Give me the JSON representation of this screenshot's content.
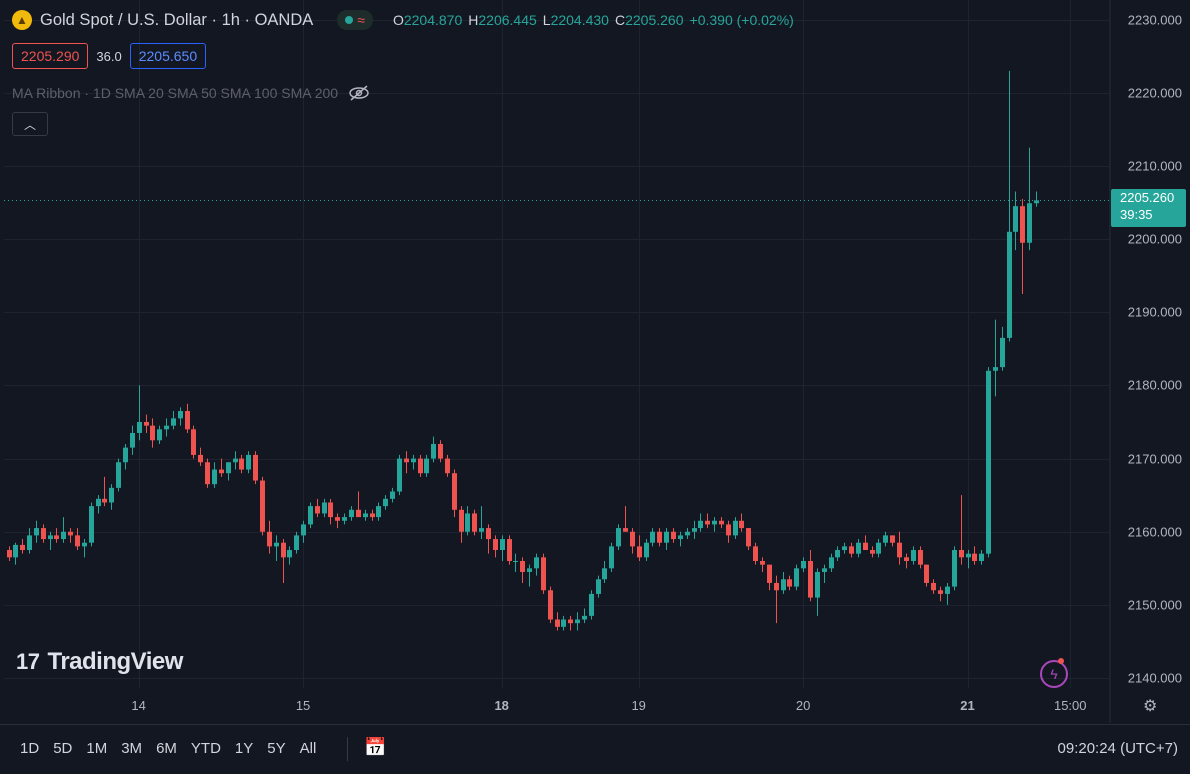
{
  "header": {
    "title": "Gold Spot / U.S. Dollar · 1h · OANDA",
    "ohlc": {
      "o_label": "O",
      "o": "2204.870",
      "h_label": "H",
      "h": "2206.445",
      "l_label": "L",
      "l": "2204.430",
      "c_label": "C",
      "c": "2205.260",
      "change": "+0.390 (+0.02%)"
    }
  },
  "quote": {
    "bid": "2205.290",
    "spread": "36.0",
    "ask": "2205.650"
  },
  "indicator": {
    "label": "MA Ribbon · 1D SMA 20 SMA 50 SMA 100 SMA 200"
  },
  "last_price": {
    "value": "2205.260",
    "countdown": "39:35"
  },
  "watermark": "TradingView",
  "timeframes": [
    "1D",
    "5D",
    "1M",
    "3M",
    "6M",
    "YTD",
    "1Y",
    "5Y",
    "All"
  ],
  "clock": "09:20:24 (UTC+7)",
  "colors": {
    "up": "#26a69a",
    "down": "#ef5350",
    "background": "#131722"
  },
  "icons": {
    "logo": "gold-coin-icon",
    "visibility": "eye-off-icon",
    "collapse": "chevron-up-icon",
    "calendar": "calendar-range-icon",
    "settings": "gear-icon",
    "bolt": "lightning-icon"
  },
  "chart_data": {
    "type": "candlestick",
    "title": "Gold Spot / U.S. Dollar · 1h · OANDA",
    "ylim": [
      2137,
      2232
    ],
    "yticks": [
      2140,
      2150,
      2160,
      2170,
      2180,
      2190,
      2200,
      2210,
      2220,
      2230
    ],
    "ytick_labels": [
      "2140.000",
      "2150.000",
      "2160.000",
      "2170.000",
      "2180.000",
      "2190.000",
      "2200.000",
      "2210.000",
      "2220.000",
      "2230.000"
    ],
    "xticks": [
      {
        "index": 19,
        "label": "14"
      },
      {
        "index": 43,
        "label": "15"
      },
      {
        "index": 72,
        "label": "18"
      },
      {
        "index": 92,
        "label": "19"
      },
      {
        "index": 116,
        "label": "20"
      },
      {
        "index": 140,
        "label": "21"
      },
      {
        "index": 155,
        "label": "15:00"
      }
    ],
    "grid": true,
    "series": [
      [
        2157.5,
        2158.0,
        2156.0,
        2156.5
      ],
      [
        2156.5,
        2158.5,
        2155.5,
        2158.2
      ],
      [
        2158.2,
        2159.0,
        2157.0,
        2157.5
      ],
      [
        2157.5,
        2160.5,
        2157.0,
        2159.5
      ],
      [
        2159.5,
        2161.5,
        2158.5,
        2160.5
      ],
      [
        2160.5,
        2161.0,
        2158.5,
        2159.0
      ],
      [
        2159.0,
        2160.0,
        2157.5,
        2159.5
      ],
      [
        2159.5,
        2160.5,
        2158.5,
        2159.0
      ],
      [
        2159.0,
        2162.0,
        2158.5,
        2160.0
      ],
      [
        2160.0,
        2160.5,
        2158.5,
        2159.5
      ],
      [
        2159.5,
        2160.5,
        2157.5,
        2158.0
      ],
      [
        2158.0,
        2159.0,
        2156.5,
        2158.5
      ],
      [
        2158.5,
        2164.0,
        2158.0,
        2163.5
      ],
      [
        2163.5,
        2165.0,
        2162.5,
        2164.5
      ],
      [
        2164.5,
        2167.5,
        2163.5,
        2164.0
      ],
      [
        2164.0,
        2166.5,
        2163.0,
        2166.0
      ],
      [
        2166.0,
        2170.0,
        2165.5,
        2169.5
      ],
      [
        2169.5,
        2172.0,
        2168.5,
        2171.5
      ],
      [
        2171.5,
        2174.5,
        2170.5,
        2173.5
      ],
      [
        2173.5,
        2180.0,
        2172.5,
        2175.0
      ],
      [
        2175.0,
        2176.0,
        2173.5,
        2174.5
      ],
      [
        2174.5,
        2175.5,
        2171.5,
        2172.5
      ],
      [
        2172.5,
        2174.5,
        2172.0,
        2174.0
      ],
      [
        2174.0,
        2175.5,
        2173.0,
        2174.5
      ],
      [
        2174.5,
        2176.5,
        2174.0,
        2175.5
      ],
      [
        2175.5,
        2177.0,
        2174.5,
        2176.5
      ],
      [
        2176.5,
        2177.5,
        2173.5,
        2174.0
      ],
      [
        2174.0,
        2174.5,
        2170.0,
        2170.5
      ],
      [
        2170.5,
        2171.5,
        2169.0,
        2169.5
      ],
      [
        2169.5,
        2170.0,
        2166.0,
        2166.5
      ],
      [
        2166.5,
        2169.5,
        2166.0,
        2168.5
      ],
      [
        2168.5,
        2170.0,
        2167.5,
        2168.0
      ],
      [
        2168.0,
        2169.5,
        2167.0,
        2169.5
      ],
      [
        2169.5,
        2171.0,
        2168.5,
        2170.0
      ],
      [
        2170.0,
        2170.5,
        2168.0,
        2168.5
      ],
      [
        2168.5,
        2171.0,
        2168.0,
        2170.5
      ],
      [
        2170.5,
        2171.0,
        2166.5,
        2167.0
      ],
      [
        2167.0,
        2167.5,
        2159.5,
        2160.0
      ],
      [
        2160.0,
        2161.5,
        2157.0,
        2158.0
      ],
      [
        2158.0,
        2159.5,
        2156.0,
        2158.5
      ],
      [
        2158.5,
        2159.0,
        2153.0,
        2156.5
      ],
      [
        2156.5,
        2158.0,
        2155.5,
        2157.5
      ],
      [
        2157.5,
        2160.0,
        2157.0,
        2159.5
      ],
      [
        2159.5,
        2161.5,
        2158.5,
        2161.0
      ],
      [
        2161.0,
        2164.0,
        2160.5,
        2163.5
      ],
      [
        2163.5,
        2164.5,
        2162.0,
        2162.5
      ],
      [
        2162.5,
        2164.5,
        2162.0,
        2164.0
      ],
      [
        2164.0,
        2164.5,
        2161.0,
        2162.0
      ],
      [
        2162.0,
        2162.5,
        2160.5,
        2161.5
      ],
      [
        2161.5,
        2162.5,
        2161.0,
        2162.0
      ],
      [
        2162.0,
        2163.5,
        2161.5,
        2163.0
      ],
      [
        2163.0,
        2165.5,
        2162.5,
        2162.0
      ],
      [
        2162.0,
        2163.0,
        2161.5,
        2162.5
      ],
      [
        2162.5,
        2163.0,
        2161.5,
        2162.0
      ],
      [
        2162.0,
        2164.0,
        2161.5,
        2163.5
      ],
      [
        2163.5,
        2165.0,
        2163.0,
        2164.5
      ],
      [
        2164.5,
        2166.0,
        2164.0,
        2165.5
      ],
      [
        2165.5,
        2170.5,
        2165.0,
        2170.0
      ],
      [
        2170.0,
        2171.0,
        2168.0,
        2169.5
      ],
      [
        2169.5,
        2170.5,
        2168.5,
        2170.0
      ],
      [
        2170.0,
        2170.5,
        2167.5,
        2168.0
      ],
      [
        2168.0,
        2170.5,
        2167.5,
        2170.0
      ],
      [
        2170.0,
        2173.0,
        2169.5,
        2172.0
      ],
      [
        2172.0,
        2172.5,
        2169.5,
        2170.0
      ],
      [
        2170.0,
        2170.5,
        2167.5,
        2168.0
      ],
      [
        2168.0,
        2168.5,
        2162.0,
        2163.0
      ],
      [
        2163.0,
        2163.5,
        2158.5,
        2160.0
      ],
      [
        2160.0,
        2163.5,
        2159.5,
        2162.5
      ],
      [
        2162.5,
        2163.0,
        2159.5,
        2160.0
      ],
      [
        2160.0,
        2163.5,
        2159.0,
        2160.5
      ],
      [
        2160.5,
        2161.0,
        2157.0,
        2159.0
      ],
      [
        2159.0,
        2159.5,
        2156.5,
        2157.5
      ],
      [
        2157.5,
        2159.5,
        2156.0,
        2159.0
      ],
      [
        2159.0,
        2159.5,
        2155.5,
        2156.0
      ],
      [
        2156.0,
        2157.0,
        2154.5,
        2156.0
      ],
      [
        2156.0,
        2156.5,
        2153.0,
        2154.5
      ],
      [
        2154.5,
        2155.5,
        2152.5,
        2155.0
      ],
      [
        2155.0,
        2157.0,
        2154.0,
        2156.5
      ],
      [
        2156.5,
        2157.0,
        2151.5,
        2152.0
      ],
      [
        2152.0,
        2152.5,
        2147.5,
        2148.0
      ],
      [
        2148.0,
        2149.0,
        2146.5,
        2147.0
      ],
      [
        2147.0,
        2148.5,
        2146.5,
        2148.0
      ],
      [
        2148.0,
        2148.5,
        2146.5,
        2147.5
      ],
      [
        2147.5,
        2149.0,
        2146.5,
        2148.0
      ],
      [
        2148.0,
        2149.5,
        2147.5,
        2148.5
      ],
      [
        2148.5,
        2152.0,
        2148.0,
        2151.5
      ],
      [
        2151.5,
        2154.0,
        2151.0,
        2153.5
      ],
      [
        2153.5,
        2156.0,
        2153.0,
        2155.0
      ],
      [
        2155.0,
        2158.5,
        2154.5,
        2158.0
      ],
      [
        2158.0,
        2161.0,
        2157.5,
        2160.5
      ],
      [
        2160.5,
        2163.5,
        2160.0,
        2160.0
      ],
      [
        2160.0,
        2160.5,
        2157.0,
        2158.0
      ],
      [
        2158.0,
        2159.5,
        2156.0,
        2156.5
      ],
      [
        2156.5,
        2159.0,
        2156.0,
        2158.5
      ],
      [
        2158.5,
        2160.5,
        2158.0,
        2160.0
      ],
      [
        2160.0,
        2160.5,
        2158.0,
        2158.5
      ],
      [
        2158.5,
        2160.5,
        2157.5,
        2160.0
      ],
      [
        2160.0,
        2160.5,
        2158.5,
        2159.0
      ],
      [
        2159.0,
        2160.0,
        2158.0,
        2159.5
      ],
      [
        2159.5,
        2160.5,
        2159.0,
        2160.0
      ],
      [
        2160.0,
        2161.5,
        2159.0,
        2160.5
      ],
      [
        2160.5,
        2162.5,
        2160.0,
        2161.5
      ],
      [
        2161.5,
        2162.5,
        2160.5,
        2161.0
      ],
      [
        2161.0,
        2162.0,
        2160.0,
        2161.5
      ],
      [
        2161.5,
        2162.0,
        2160.5,
        2161.0
      ],
      [
        2161.0,
        2161.5,
        2158.5,
        2159.5
      ],
      [
        2159.5,
        2162.0,
        2159.0,
        2161.5
      ],
      [
        2161.5,
        2162.5,
        2160.0,
        2160.5
      ],
      [
        2160.5,
        2160.5,
        2157.5,
        2158.0
      ],
      [
        2158.0,
        2158.5,
        2155.5,
        2156.0
      ],
      [
        2156.0,
        2156.5,
        2154.5,
        2155.5
      ],
      [
        2155.5,
        2155.5,
        2152.0,
        2153.0
      ],
      [
        2153.0,
        2154.0,
        2147.5,
        2152.0
      ],
      [
        2152.0,
        2154.5,
        2151.5,
        2153.5
      ],
      [
        2153.5,
        2154.0,
        2152.0,
        2152.5
      ],
      [
        2152.5,
        2155.5,
        2152.0,
        2155.0
      ],
      [
        2155.0,
        2156.5,
        2154.5,
        2156.0
      ],
      [
        2156.0,
        2157.5,
        2150.5,
        2151.0
      ],
      [
        2151.0,
        2155.0,
        2148.5,
        2154.5
      ],
      [
        2154.5,
        2155.5,
        2153.0,
        2155.0
      ],
      [
        2155.0,
        2157.0,
        2154.5,
        2156.5
      ],
      [
        2156.5,
        2158.0,
        2156.0,
        2157.5
      ],
      [
        2157.5,
        2158.5,
        2157.0,
        2158.0
      ],
      [
        2158.0,
        2158.5,
        2156.5,
        2157.0
      ],
      [
        2157.0,
        2159.0,
        2156.5,
        2158.5
      ],
      [
        2158.5,
        2159.5,
        2157.5,
        2157.5
      ],
      [
        2157.5,
        2158.0,
        2156.5,
        2157.0
      ],
      [
        2157.0,
        2159.0,
        2156.5,
        2158.5
      ],
      [
        2158.5,
        2160.0,
        2158.0,
        2159.5
      ],
      [
        2159.5,
        2159.5,
        2158.0,
        2158.5
      ],
      [
        2158.5,
        2160.0,
        2155.5,
        2156.5
      ],
      [
        2156.5,
        2157.0,
        2155.0,
        2156.0
      ],
      [
        2156.0,
        2158.0,
        2155.5,
        2157.5
      ],
      [
        2157.5,
        2158.0,
        2155.0,
        2155.5
      ],
      [
        2155.5,
        2155.5,
        2152.5,
        2153.0
      ],
      [
        2153.0,
        2153.5,
        2151.5,
        2152.0
      ],
      [
        2152.0,
        2152.5,
        2150.5,
        2151.5
      ],
      [
        2151.5,
        2153.0,
        2150.0,
        2152.5
      ],
      [
        2152.5,
        2158.0,
        2152.0,
        2157.5
      ],
      [
        2157.5,
        2165.0,
        2155.5,
        2156.5
      ],
      [
        2156.5,
        2157.5,
        2155.0,
        2157.0
      ],
      [
        2157.0,
        2158.0,
        2155.5,
        2156.0
      ],
      [
        2156.0,
        2157.5,
        2155.5,
        2157.0
      ],
      [
        2157.0,
        2182.5,
        2156.5,
        2182.0
      ],
      [
        2182.0,
        2189.0,
        2178.5,
        2182.5
      ],
      [
        2182.5,
        2188.0,
        2182.0,
        2186.5
      ],
      [
        2186.5,
        2223.0,
        2186.0,
        2201.0
      ],
      [
        2201.0,
        2206.5,
        2198.5,
        2204.5
      ],
      [
        2204.5,
        2205.5,
        2192.5,
        2199.5
      ],
      [
        2199.5,
        2212.5,
        2198.5,
        2204.9
      ],
      [
        2204.9,
        2206.5,
        2204.4,
        2205.3
      ]
    ]
  }
}
